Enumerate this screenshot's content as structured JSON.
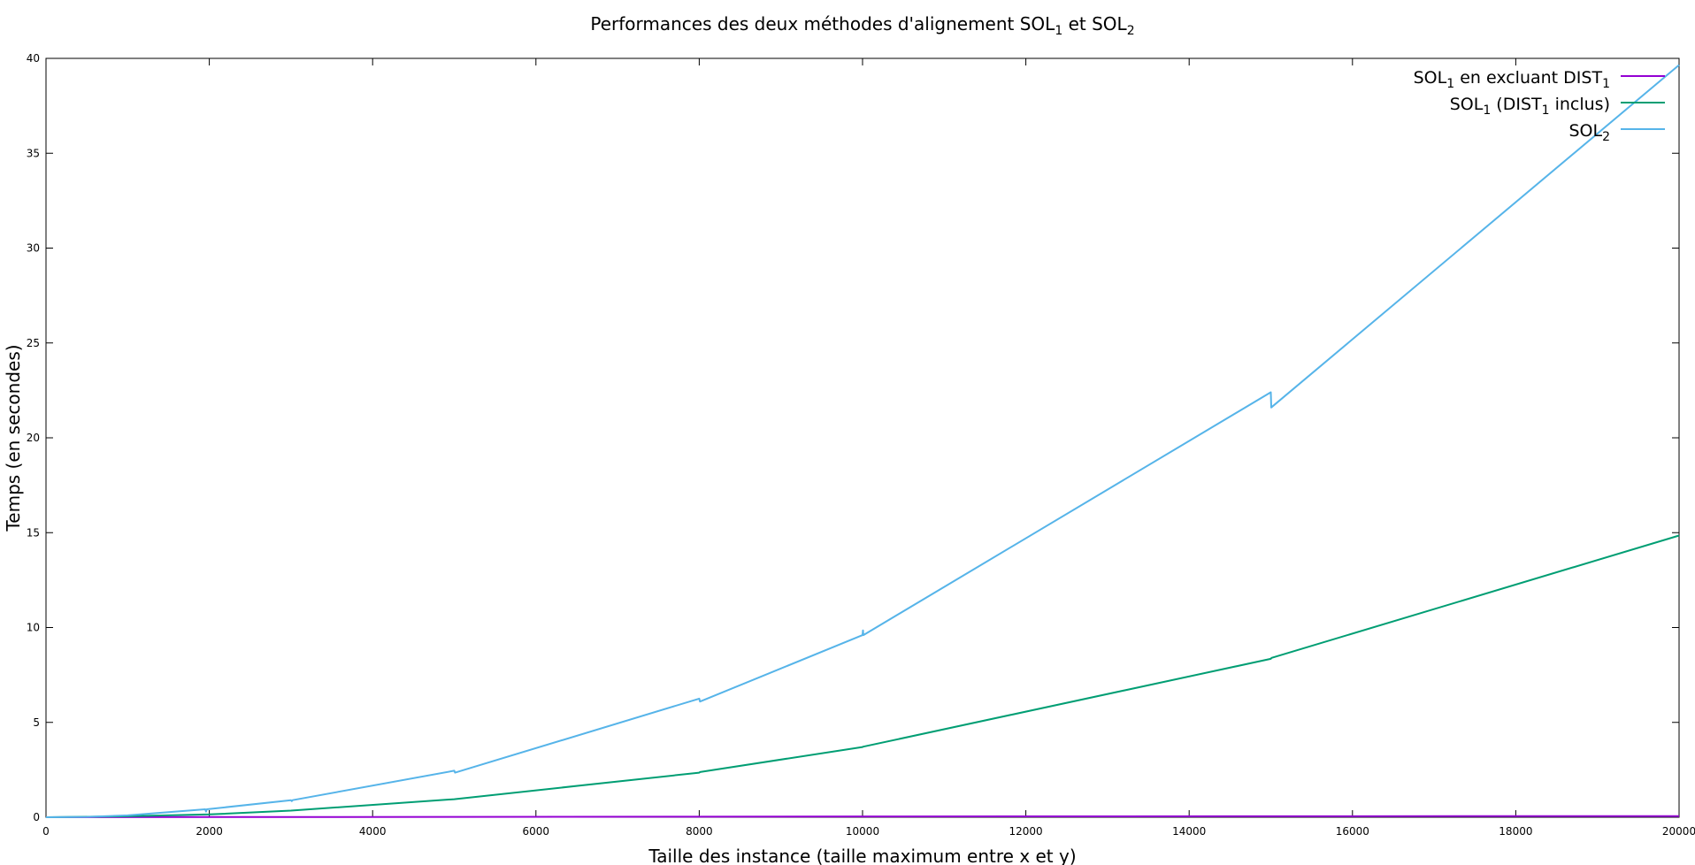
{
  "chart_data": {
    "type": "line",
    "title": {
      "text": "Performances des deux méthodes d'alignement SOL",
      "sub1": "1",
      "mid": " et SOL",
      "sub2": "2"
    },
    "xlabel": "Taille des instance (taille maximum entre x et y)",
    "ylabel": "Temps (en secondes)",
    "xlim": [
      0,
      20000
    ],
    "ylim": [
      0,
      40
    ],
    "xticks": [
      0,
      2000,
      4000,
      6000,
      8000,
      10000,
      12000,
      14000,
      16000,
      18000,
      20000
    ],
    "yticks": [
      0,
      5,
      10,
      15,
      20,
      25,
      30,
      35,
      40
    ],
    "grid": false,
    "legend_position": "top-right",
    "series": [
      {
        "key": "sol1-excl",
        "name": {
          "a": "SOL",
          "b": "1",
          "c": " en excluant DIST",
          "d": "1"
        },
        "color": "#9400d3",
        "x": [
          0,
          2000,
          3000,
          5000,
          8000,
          10000,
          15000,
          20000
        ],
        "y": [
          0,
          0.01,
          0.01,
          0.02,
          0.03,
          0.04,
          0.05,
          0.06
        ]
      },
      {
        "key": "sol1-incl",
        "name": {
          "a": "SOL",
          "b": "1",
          "c": " (DIST",
          "d": "1",
          "e": " inclus)"
        },
        "color": "#009e73",
        "x": [
          0,
          1000,
          2000,
          3000,
          5000,
          8000,
          8010,
          10000,
          10010,
          15000,
          15010,
          20000
        ],
        "y": [
          0,
          0.05,
          0.15,
          0.35,
          0.95,
          2.35,
          2.38,
          3.7,
          3.72,
          8.35,
          8.4,
          14.85
        ]
      },
      {
        "key": "sol2",
        "name": {
          "a": "SOL",
          "b": "2"
        },
        "color": "#56b4e9",
        "x": [
          0,
          500,
          1000,
          1950,
          1960,
          1970,
          3000,
          3010,
          3020,
          5000,
          5010,
          8000,
          8010,
          10000,
          10005,
          10010,
          15000,
          15005,
          20000
        ],
        "y": [
          0,
          0.02,
          0.1,
          0.42,
          0.3,
          0.42,
          0.9,
          0.85,
          0.9,
          2.45,
          2.35,
          6.25,
          6.1,
          9.6,
          9.85,
          9.6,
          22.4,
          21.6,
          39.65
        ]
      }
    ]
  }
}
